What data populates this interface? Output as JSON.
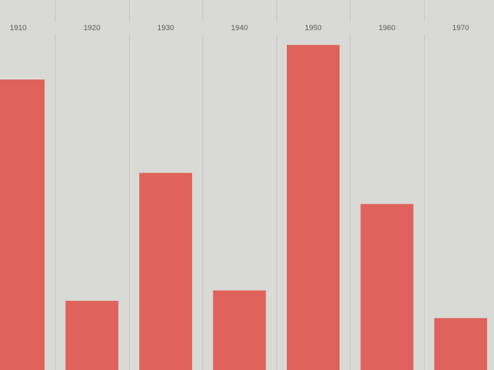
{
  "chart_data": {
    "type": "bar",
    "categories": [
      "1910",
      "1920",
      "1930",
      "1940",
      "1950",
      "1960",
      "1970"
    ],
    "values": [
      84,
      20,
      57,
      23,
      94,
      48,
      15
    ],
    "ylim": [
      0,
      107
    ],
    "grid": true,
    "colors": {
      "bar": "#e0625c",
      "background": "#d9d9d5",
      "gridline": "#c4c6bf",
      "tick_label": "#5a5a5a"
    }
  }
}
